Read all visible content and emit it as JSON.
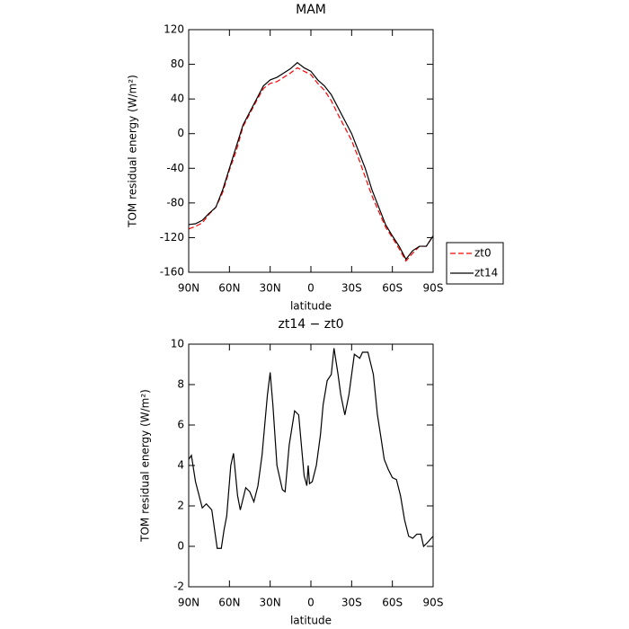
{
  "chart_data": [
    {
      "type": "line",
      "title": "MAM",
      "xlabel": "latitude",
      "ylabel": "TOM residual energy (W/m²)",
      "x": [
        90,
        85,
        80,
        75,
        70,
        65,
        60,
        55,
        50,
        45,
        40,
        35,
        30,
        25,
        20,
        15,
        10,
        5,
        0,
        -5,
        -10,
        -15,
        -20,
        -25,
        -30,
        -35,
        -40,
        -45,
        -50,
        -55,
        -60,
        -65,
        -70,
        -75,
        -80,
        -85,
        -90
      ],
      "series": [
        {
          "name": "zt0",
          "color": "#ff0000",
          "dash": true,
          "values": [
            -110,
            -107,
            -103,
            -93,
            -85,
            -68,
            -42,
            -20,
            8,
            23,
            38,
            52,
            58,
            60,
            65,
            70,
            76,
            72,
            68,
            58,
            50,
            38,
            22,
            7,
            -8,
            -28,
            -50,
            -72,
            -90,
            -108,
            -120,
            -133,
            -147,
            -138,
            -130,
            -130,
            -118
          ]
        },
        {
          "name": "zt14",
          "color": "#000000",
          "dash": false,
          "values": [
            -105,
            -104,
            -100,
            -92,
            -85,
            -65,
            -40,
            -15,
            10,
            25,
            40,
            55,
            62,
            65,
            70,
            75,
            82,
            76,
            72,
            62,
            55,
            45,
            30,
            15,
            0,
            -20,
            -40,
            -65,
            -85,
            -105,
            -118,
            -130,
            -145,
            -135,
            -130,
            -130,
            -118
          ]
        }
      ],
      "xlim": [
        90,
        -90
      ],
      "xticks": [
        {
          "value": 90,
          "label": "90N"
        },
        {
          "value": 60,
          "label": "60N"
        },
        {
          "value": 30,
          "label": "30N"
        },
        0,
        {
          "value": -30,
          "label": "30S"
        },
        {
          "value": -60,
          "label": "60S"
        },
        {
          "value": -90,
          "label": "90S"
        }
      ],
      "ylim": [
        -160,
        120
      ],
      "yticks": [
        -160,
        -120,
        -80,
        -40,
        0,
        40,
        80,
        120
      ],
      "legend": "right"
    },
    {
      "type": "line",
      "title": "zt14 − zt0",
      "xlabel": "latitude",
      "ylabel": "TOM residual energy (W/m²)",
      "x": [
        90,
        88,
        85,
        80,
        77,
        73,
        69,
        66,
        64,
        62,
        59,
        57,
        54,
        52,
        48,
        45,
        42,
        39,
        36,
        32,
        30,
        28,
        25,
        21,
        19,
        16,
        12,
        9,
        7,
        5,
        3,
        2,
        1,
        -1,
        -4,
        -7,
        -9,
        -12,
        -15,
        -17,
        -20,
        -22,
        -25,
        -28,
        -32,
        -36,
        -38,
        -42,
        -46,
        -49,
        -52,
        -54,
        -57,
        -60,
        -63,
        -66,
        -69,
        -72,
        -75,
        -78,
        -81,
        -83,
        -86,
        -90
      ],
      "series": [
        {
          "color": "#000000",
          "dash": false,
          "values": [
            4.3,
            4.5,
            3.2,
            1.9,
            2.1,
            1.8,
            -0.1,
            -0.1,
            0.8,
            1.5,
            4.0,
            4.6,
            2.5,
            1.8,
            2.9,
            2.7,
            2.2,
            3.0,
            4.5,
            7.5,
            8.6,
            7.0,
            4.0,
            2.8,
            2.7,
            5.0,
            6.7,
            6.5,
            5.0,
            3.5,
            3.0,
            4.0,
            3.1,
            3.2,
            4.0,
            5.5,
            7.0,
            8.2,
            8.5,
            9.8,
            8.5,
            7.5,
            6.5,
            7.5,
            9.5,
            9.3,
            9.6,
            9.6,
            8.5,
            6.5,
            5.2,
            4.3,
            3.8,
            3.4,
            3.3,
            2.5,
            1.3,
            0.5,
            0.4,
            0.6,
            0.6,
            0.0,
            0.2,
            0.5
          ]
        }
      ],
      "xlim": [
        90,
        -90
      ],
      "xticks": [
        {
          "value": 90,
          "label": "90N"
        },
        {
          "value": 60,
          "label": "60N"
        },
        {
          "value": 30,
          "label": "30N"
        },
        0,
        {
          "value": -30,
          "label": "30S"
        },
        {
          "value": -60,
          "label": "60S"
        },
        {
          "value": -90,
          "label": "90S"
        }
      ],
      "ylim": [
        -2,
        10
      ],
      "yticks": [
        -2,
        0,
        2,
        4,
        6,
        8,
        10
      ]
    }
  ]
}
